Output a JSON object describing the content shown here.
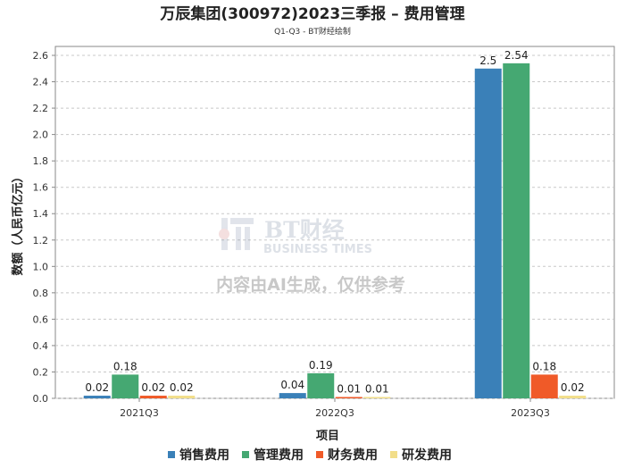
{
  "chart_data": {
    "type": "bar",
    "title": "万辰集团(300972)2023三季报 – 费用管理",
    "subtitle": "Q1-Q3 - BT财经绘制",
    "xlabel": "项目",
    "ylabel": "数额（人民币亿元）",
    "categories": [
      "2021Q3",
      "2022Q3",
      "2023Q3"
    ],
    "ylim": [
      0,
      2.7
    ],
    "yticks": [
      "0.0",
      "0.2",
      "0.4",
      "0.6",
      "0.8",
      "1.0",
      "1.2",
      "1.4",
      "1.6",
      "1.8",
      "2.0",
      "2.2",
      "2.4",
      "2.6"
    ],
    "grid": true,
    "legend_position": "bottom",
    "series": [
      {
        "name": "销售费用",
        "color": "#3a80b8",
        "values": [
          0.02,
          0.04,
          2.5
        ],
        "labels": [
          "0.02",
          "0.04",
          "2.5"
        ]
      },
      {
        "name": "管理费用",
        "color": "#45a872",
        "values": [
          0.18,
          0.19,
          2.54
        ],
        "labels": [
          "0.18",
          "0.19",
          "2.54"
        ]
      },
      {
        "name": "财务费用",
        "color": "#f05a28",
        "values": [
          0.02,
          0.01,
          0.18
        ],
        "labels": [
          "0.02",
          "0.01",
          "0.18"
        ]
      },
      {
        "name": "研发费用",
        "color": "#f2de8a",
        "values": [
          0.02,
          0.01,
          0.02
        ],
        "labels": [
          "0.02",
          "0.01",
          "0.02"
        ]
      }
    ]
  },
  "watermark": {
    "brand": "BT财经",
    "brand_en": "BUSINESS TIMES",
    "notice": "内容由AI生成，仅供参考"
  }
}
